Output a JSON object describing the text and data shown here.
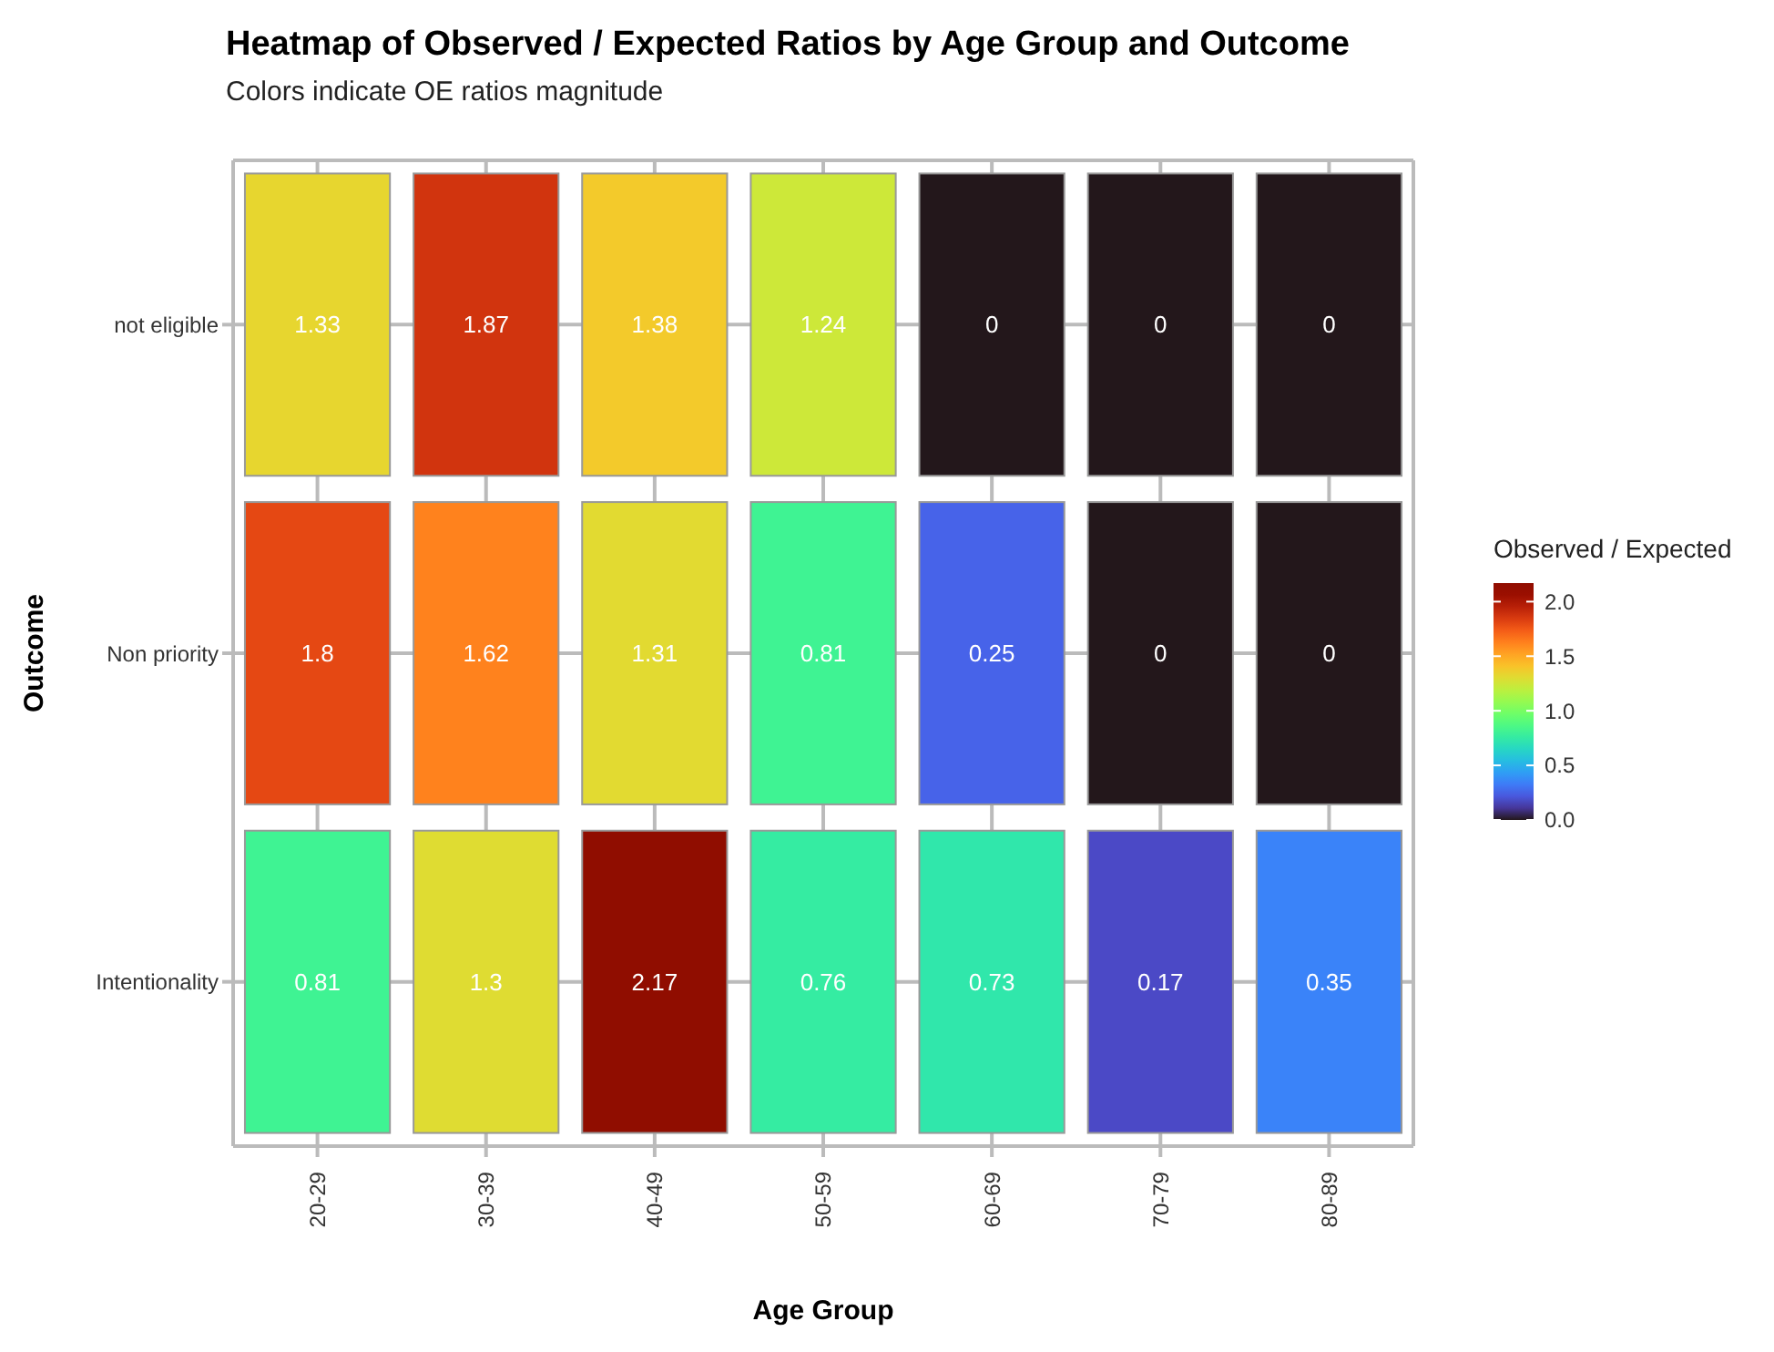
{
  "chart_data": {
    "type": "heatmap",
    "title": "Heatmap of Observed / Expected Ratios by Age Group and Outcome",
    "subtitle": "Colors indicate OE ratios magnitude",
    "xlabel": "Age Group",
    "ylabel": "Outcome",
    "legend_title": "Observed / Expected",
    "categories": [
      "20-29",
      "30-39",
      "40-49",
      "50-59",
      "60-69",
      "70-79",
      "80-89"
    ],
    "y_categories": [
      "not eligible",
      "Non priority",
      "Intentionality"
    ],
    "cells": [
      [
        1.33,
        1.87,
        1.38,
        1.24,
        0,
        0,
        0
      ],
      [
        1.8,
        1.62,
        1.31,
        0.81,
        0.25,
        0,
        0
      ],
      [
        0.81,
        1.3,
        2.17,
        0.76,
        0.73,
        0.17,
        0.35
      ]
    ],
    "clim": [
      0,
      2.17
    ],
    "cticks": [
      {
        "value": 0,
        "label": "0.0"
      },
      {
        "value": 0.5,
        "label": "0.5"
      },
      {
        "value": 1,
        "label": "1.0"
      },
      {
        "value": 1.5,
        "label": "1.5"
      },
      {
        "value": 2,
        "label": "2.0"
      }
    ],
    "data_labels": true,
    "grid": true
  }
}
